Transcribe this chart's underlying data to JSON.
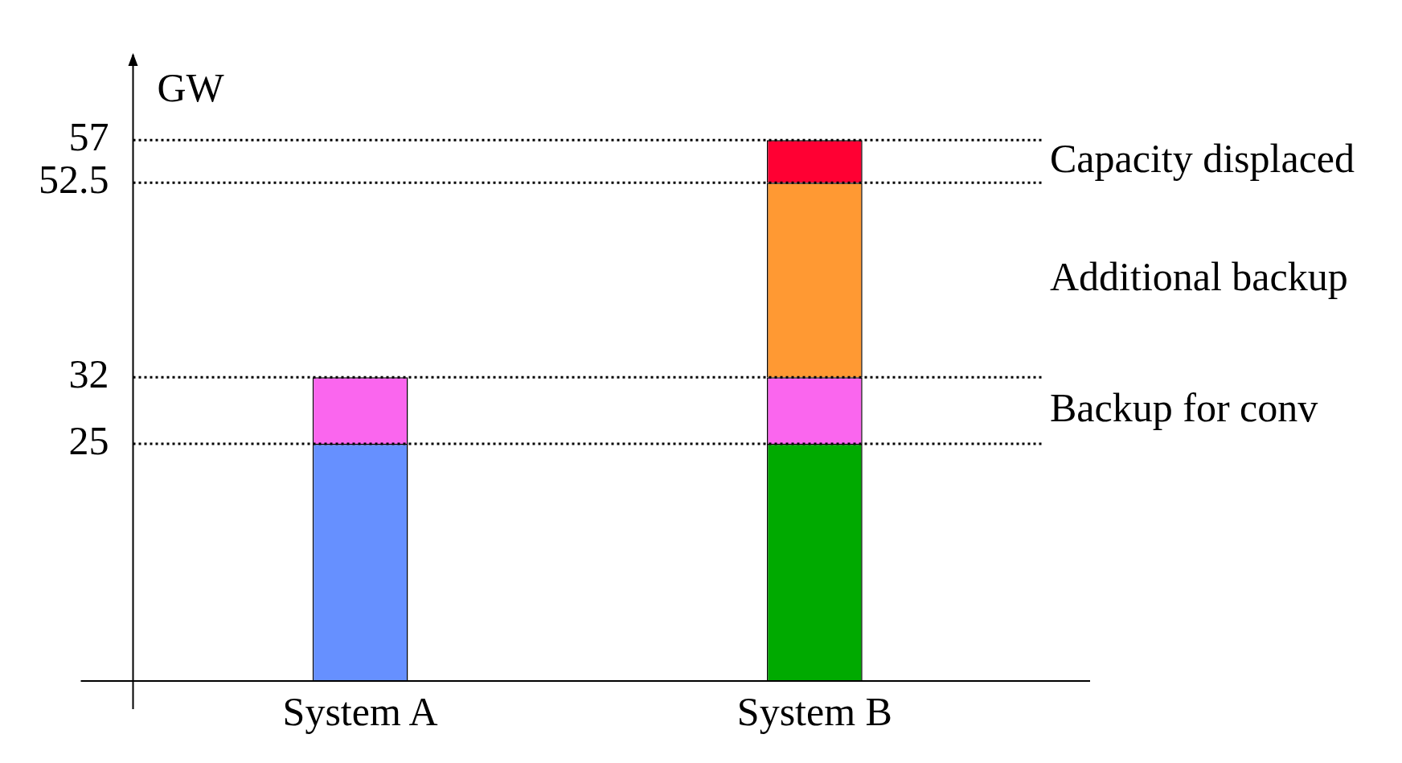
{
  "chart_data": {
    "type": "bar",
    "ylabel": "GW",
    "categories": [
      "System A",
      "System B"
    ],
    "stacked": true,
    "series": [
      {
        "colors": [
          "#6690ff",
          "#00aa00"
        ],
        "values": [
          25,
          25
        ]
      },
      {
        "name": "Backup for conv",
        "color": "#fa66ee",
        "values": [
          7,
          7
        ]
      },
      {
        "name": "Additional backup",
        "color": "#ff9933",
        "values": [
          null,
          20.5
        ]
      },
      {
        "name": "Capacity displaced",
        "color": "#ff0033",
        "values": [
          null,
          4.5
        ]
      }
    ],
    "ylim": [
      0,
      66
    ],
    "yticks": [
      25,
      32,
      52.5,
      57
    ],
    "ref_lines": [
      {
        "axis": "y",
        "value": 57,
        "line_style": "dotted"
      },
      {
        "axis": "y",
        "value": 52.5,
        "line_style": "dotted"
      },
      {
        "axis": "y",
        "value": 32,
        "line_style": "dotted"
      },
      {
        "axis": "y",
        "value": 25,
        "line_style": "dotted"
      }
    ],
    "legend": false,
    "grid": false
  }
}
